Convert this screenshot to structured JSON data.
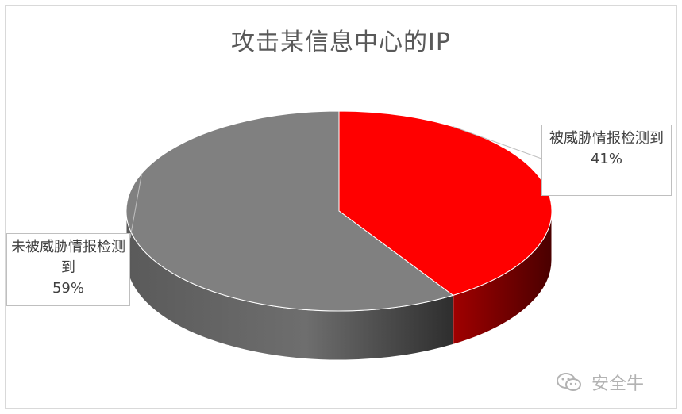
{
  "chart_data": {
    "type": "pie",
    "title": "攻击某信息中心的IP",
    "slices": [
      {
        "label": "被威胁情报检测到",
        "percent": 41,
        "percent_label": "41%",
        "color": "#ff0000",
        "side_color": "#8b0000"
      },
      {
        "label": "未被威胁情报检测到",
        "percent": 59,
        "percent_label": "59%",
        "color": "#808080",
        "side_color": "#4a4a4a"
      }
    ],
    "style": "3d",
    "legend": "none"
  },
  "watermark": {
    "text": "安全牛",
    "icon": "wechat-icon"
  }
}
